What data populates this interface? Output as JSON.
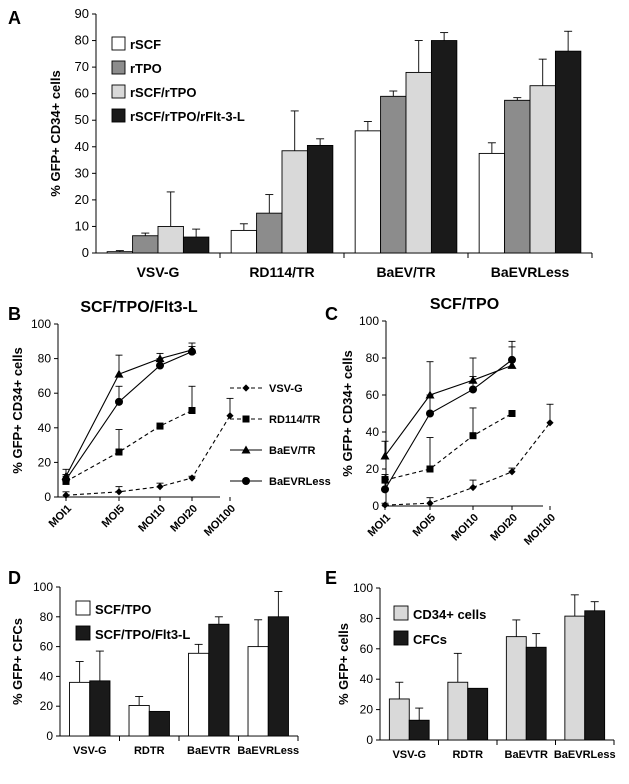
{
  "chart_data": [
    {
      "panel": "A",
      "type": "bar",
      "title": "",
      "ylabel": "% GFP+ CD34+ cells",
      "xlabel": "",
      "ylim": [
        0,
        90
      ],
      "yticks": [
        0,
        10,
        20,
        30,
        40,
        50,
        60,
        70,
        80,
        90
      ],
      "categories": [
        "VSV-G",
        "RD114/TR",
        "BaEV/TR",
        "BaEVRLess"
      ],
      "legend_position": "top-left",
      "series": [
        {
          "name": "rSCF",
          "color": "#ffffff",
          "values": [
            0.5,
            8.5,
            46,
            37.5
          ],
          "errors": [
            0.4,
            2.5,
            3.5,
            4
          ]
        },
        {
          "name": "rTPO",
          "color": "#8c8c8c",
          "values": [
            6.5,
            15,
            59,
            57.5
          ],
          "errors": [
            1,
            7,
            2,
            1
          ]
        },
        {
          "name": "rSCF/rTPO",
          "color": "#d9d9d9",
          "values": [
            10,
            38.5,
            68,
            63
          ],
          "errors": [
            13,
            15,
            12,
            10
          ]
        },
        {
          "name": "rSCF/rTPO/rFlt-3-L",
          "color": "#1a1a1a",
          "values": [
            6,
            40.5,
            80,
            76
          ],
          "errors": [
            3,
            2.5,
            3,
            7.5
          ]
        }
      ]
    },
    {
      "panel": "B",
      "type": "line",
      "title": "SCF/TPO/Flt3-L",
      "ylabel": "% GFP+ CD34+ cells",
      "ylim": [
        0,
        100
      ],
      "yticks": [
        0,
        20,
        40,
        60,
        80,
        100
      ],
      "categories": [
        "MOI1",
        "MOI5",
        "MOI10",
        "MOI20",
        "MOI100"
      ],
      "legend_position": "right",
      "series": [
        {
          "name": "VSV-G",
          "marker": "diamond",
          "dashed": true,
          "values": [
            1,
            3,
            6,
            11,
            47
          ],
          "errors": [
            2,
            3,
            2,
            1,
            10
          ]
        },
        {
          "name": "RD114/TR",
          "marker": "square",
          "dashed": true,
          "values": [
            9,
            26,
            41,
            50,
            null
          ],
          "errors": [
            4,
            13,
            1.5,
            14,
            null
          ]
        },
        {
          "name": "BaEV/TR",
          "marker": "triangle",
          "dashed": false,
          "values": [
            12,
            71,
            80,
            85,
            null
          ],
          "errors": [
            4,
            11,
            3,
            4,
            null
          ]
        },
        {
          "name": "BaEVRLess",
          "marker": "circle",
          "dashed": false,
          "values": [
            10,
            55,
            76,
            84,
            null
          ],
          "errors": [
            2,
            9,
            4,
            3,
            null
          ]
        }
      ]
    },
    {
      "panel": "C",
      "type": "line",
      "title": "SCF/TPO",
      "ylabel": "% GFP+ CD34+ cells",
      "ylim": [
        0,
        100
      ],
      "yticks": [
        0,
        20,
        40,
        60,
        80,
        100
      ],
      "categories": [
        "MOI1",
        "MOI5",
        "MOI10",
        "MOI20",
        "MOI100"
      ],
      "series": [
        {
          "name": "VSV-G",
          "marker": "diamond",
          "dashed": true,
          "values": [
            0.5,
            1.5,
            10,
            18.5,
            45
          ],
          "errors": [
            1,
            3,
            4,
            2,
            10
          ]
        },
        {
          "name": "RD114/TR",
          "marker": "square",
          "dashed": true,
          "values": [
            14,
            20,
            38,
            50,
            null
          ],
          "errors": [
            3,
            17,
            15,
            0,
            null
          ]
        },
        {
          "name": "BaEV/TR",
          "marker": "triangle",
          "dashed": false,
          "values": [
            27,
            60,
            68,
            76,
            null
          ],
          "errors": [
            8,
            18,
            12,
            10,
            null
          ]
        },
        {
          "name": "BaEVRLess",
          "marker": "circle",
          "dashed": false,
          "values": [
            9,
            50,
            63,
            79,
            null
          ],
          "errors": [
            7,
            10,
            7,
            10,
            null
          ]
        }
      ]
    },
    {
      "panel": "D",
      "type": "bar",
      "ylabel": "% GFP+ CFCs",
      "ylim": [
        0,
        100
      ],
      "yticks": [
        0,
        20,
        40,
        60,
        80,
        100
      ],
      "categories": [
        "VSV-G",
        "RDTR",
        "BaEVTR",
        "BaEVRLess"
      ],
      "legend_position": "top-left",
      "series": [
        {
          "name": "SCF/TPO",
          "color": "#ffffff",
          "values": [
            36,
            20.5,
            55.5,
            60
          ],
          "errors": [
            14,
            6,
            6,
            18
          ]
        },
        {
          "name": "SCF/TPO/Flt3-L",
          "color": "#1a1a1a",
          "values": [
            37,
            16.5,
            75,
            80
          ],
          "errors": [
            20,
            0,
            5,
            17
          ]
        }
      ]
    },
    {
      "panel": "E",
      "type": "bar",
      "ylabel": "% GFP+ cells",
      "ylim": [
        0,
        100
      ],
      "yticks": [
        0,
        20,
        40,
        60,
        80,
        100
      ],
      "categories": [
        "VSV-G",
        "RDTR",
        "BaEVTR",
        "BaEVRLess"
      ],
      "legend_position": "top-left",
      "series": [
        {
          "name": "CD34+ cells",
          "color": "#d9d9d9",
          "values": [
            27,
            38,
            68,
            81.5
          ],
          "errors": [
            11,
            19,
            11,
            14
          ]
        },
        {
          "name": "CFCs",
          "color": "#1a1a1a",
          "values": [
            13,
            34,
            61,
            85
          ],
          "errors": [
            8,
            0,
            9,
            6
          ]
        }
      ]
    }
  ]
}
